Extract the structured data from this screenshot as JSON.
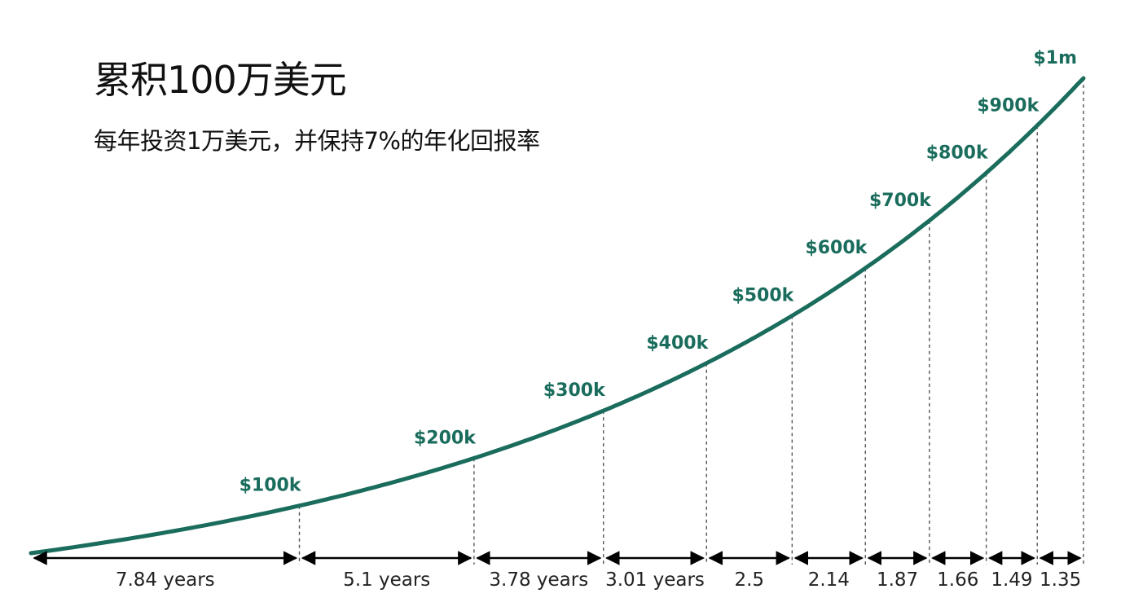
{
  "title": "累积100万美元",
  "subtitle": "每年投资1万美元，并保持7%的年化回报率",
  "colors": {
    "line": "#1a6c5c",
    "label": "#1a6c5c",
    "text": "#111111"
  },
  "chart_data": {
    "type": "line",
    "milestones": [
      {
        "label": "$100k",
        "amount": 100000,
        "year": 7.84,
        "interval": "7.84 years"
      },
      {
        "label": "$200k",
        "amount": 200000,
        "year": 12.94,
        "interval": "5.1 years"
      },
      {
        "label": "$300k",
        "amount": 300000,
        "year": 16.72,
        "interval": "3.78 years"
      },
      {
        "label": "$400k",
        "amount": 400000,
        "year": 19.73,
        "interval": "3.01 years"
      },
      {
        "label": "$500k",
        "amount": 500000,
        "year": 22.23,
        "interval": "2.5"
      },
      {
        "label": "$600k",
        "amount": 600000,
        "year": 24.37,
        "interval": "2.14"
      },
      {
        "label": "$700k",
        "amount": 700000,
        "year": 26.24,
        "interval": "1.87"
      },
      {
        "label": "$800k",
        "amount": 800000,
        "year": 27.9,
        "interval": "1.66"
      },
      {
        "label": "$900k",
        "amount": 900000,
        "year": 29.39,
        "interval": "1.49"
      },
      {
        "label": "$1m",
        "amount": 1000000,
        "year": 30.74,
        "interval": "1.35"
      }
    ],
    "xlim": [
      0,
      30.74
    ],
    "ylim": [
      0,
      1000000
    ],
    "grid": false,
    "legend": false
  }
}
